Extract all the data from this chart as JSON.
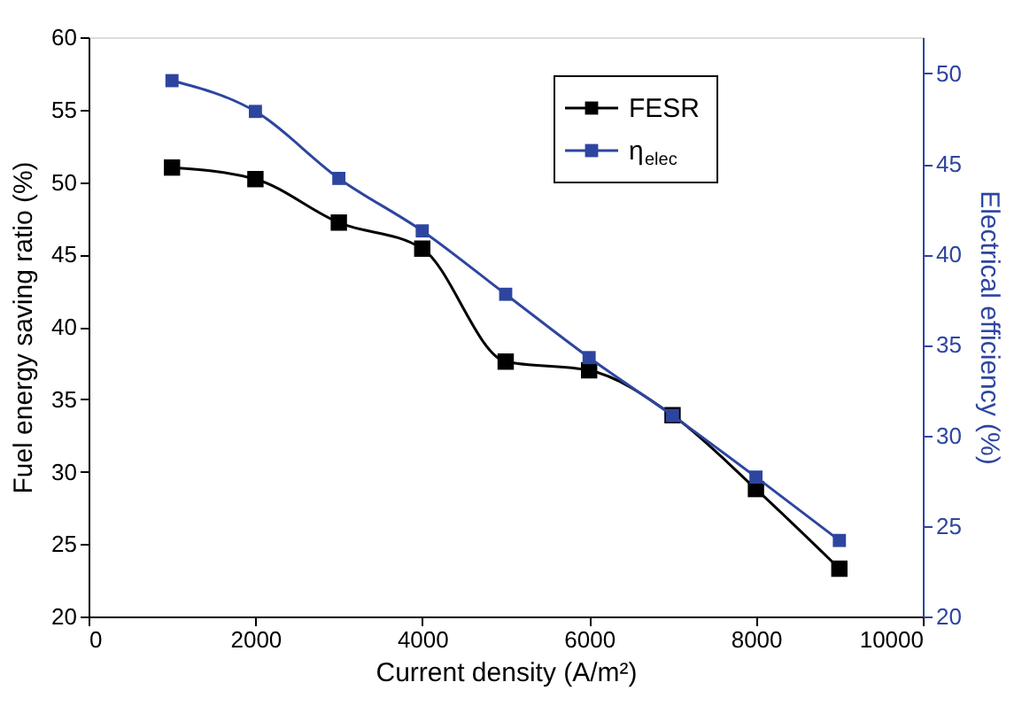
{
  "chart_data": {
    "type": "line",
    "x": [
      1000,
      2000,
      3000,
      4000,
      5000,
      6000,
      7000,
      8000,
      9000
    ],
    "xlabel": "Current density (A/m²)",
    "ylabel": "Fuel energy saving ratio (%)",
    "y2label": "Electrical efficiency (%)",
    "xlim": [
      0,
      10000
    ],
    "xticks": [
      0,
      2000,
      4000,
      6000,
      8000,
      10000
    ],
    "ylim": [
      20,
      60
    ],
    "yticks": [
      20,
      25,
      30,
      35,
      40,
      45,
      50,
      55,
      60
    ],
    "y2lim": [
      20,
      52
    ],
    "y2ticks": [
      20,
      25,
      30,
      35,
      40,
      45,
      50
    ],
    "marker": "square",
    "line_style": "solid",
    "grid": false,
    "legend": "top right",
    "series": [
      {
        "name": "FESR",
        "color": "#000000",
        "values": [
          51.0,
          50.2,
          47.2,
          45.4,
          37.6,
          37.0,
          33.9,
          28.8,
          23.3
        ]
      },
      {
        "name": "η$_{elec}$",
        "color": "#2e45a0",
        "axis": "y2",
        "values": [
          49.6,
          47.9,
          44.2,
          41.3,
          37.8,
          34.3,
          31.1,
          27.7,
          24.2
        ]
      }
    ]
  }
}
